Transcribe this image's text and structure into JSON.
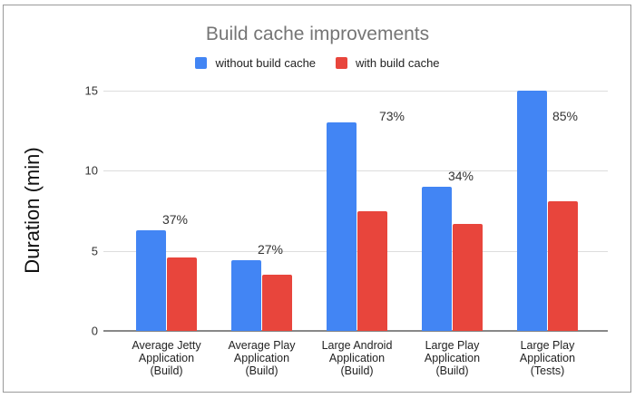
{
  "chart_data": {
    "type": "bar",
    "title": "Build cache improvements",
    "xlabel": "",
    "ylabel": "Duration (min)",
    "ylim": [
      0,
      15
    ],
    "yticks": [
      0,
      5,
      10,
      15
    ],
    "grid": true,
    "legend_position": "top",
    "categories": [
      "Average Jetty Application (Build)",
      "Average Play Application (Build)",
      "Large Android Application (Build)",
      "Large Play Application (Build)",
      "Large Play Application (Tests)"
    ],
    "category_lines": [
      [
        "Average Jetty",
        "Application",
        "(Build)"
      ],
      [
        "Average Play",
        "Application",
        "(Build)"
      ],
      [
        "Large Android",
        "Application",
        "(Build)"
      ],
      [
        "Large Play",
        "Application",
        "(Build)"
      ],
      [
        "Large Play",
        "Application",
        "(Tests)"
      ]
    ],
    "series": [
      {
        "name": "without build cache",
        "color": "#4285f4",
        "values": [
          6.3,
          4.4,
          13.0,
          9.0,
          15.0
        ]
      },
      {
        "name": "with build cache",
        "color": "#e8453c",
        "values": [
          4.6,
          3.5,
          7.5,
          6.7,
          8.1
        ]
      }
    ],
    "annotations": [
      "37%",
      "27%",
      "73%",
      "34%",
      "85%"
    ]
  }
}
